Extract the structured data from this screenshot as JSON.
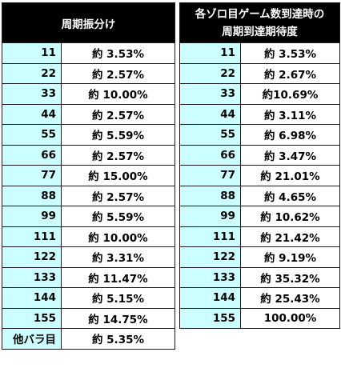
{
  "table1": {
    "header": "周期振分け",
    "rows": [
      {
        "key": "11",
        "value": "約 3.53%"
      },
      {
        "key": "22",
        "value": "約 2.57%"
      },
      {
        "key": "33",
        "value": "約 10.00%"
      },
      {
        "key": "44",
        "value": "約 2.57%"
      },
      {
        "key": "55",
        "value": "約 5.59%"
      },
      {
        "key": "66",
        "value": "約 2.57%"
      },
      {
        "key": "77",
        "value": "約 15.00%"
      },
      {
        "key": "88",
        "value": "約 2.57%"
      },
      {
        "key": "99",
        "value": "約 5.59%"
      },
      {
        "key": "111",
        "value": "約 10.00%"
      },
      {
        "key": "122",
        "value": "約 3.31%"
      },
      {
        "key": "133",
        "value": "約 11.47%"
      },
      {
        "key": "144",
        "value": "約 5.15%"
      },
      {
        "key": "155",
        "value": "約 14.75%"
      },
      {
        "key": "他バラ目",
        "value": "約 5.35%"
      }
    ]
  },
  "table2": {
    "header_line1": "各ゾロ目ゲーム数到達時の",
    "header_line2": "周期到達期待度",
    "rows": [
      {
        "key": "11",
        "value": "約 3.53%"
      },
      {
        "key": "22",
        "value": "約 2.67%"
      },
      {
        "key": "33",
        "value": "約10.69%"
      },
      {
        "key": "44",
        "value": "約 3.11%"
      },
      {
        "key": "55",
        "value": "約 6.98%"
      },
      {
        "key": "66",
        "value": "約 3.47%"
      },
      {
        "key": "77",
        "value": "約 21.01%"
      },
      {
        "key": "88",
        "value": "約 4.65%"
      },
      {
        "key": "99",
        "value": "約 10.62%"
      },
      {
        "key": "111",
        "value": "約 21.42%"
      },
      {
        "key": "122",
        "value": "約 9.19%"
      },
      {
        "key": "133",
        "value": "約 35.32%"
      },
      {
        "key": "144",
        "value": "約 25.43%"
      },
      {
        "key": "155",
        "value": "100.00%"
      }
    ]
  }
}
